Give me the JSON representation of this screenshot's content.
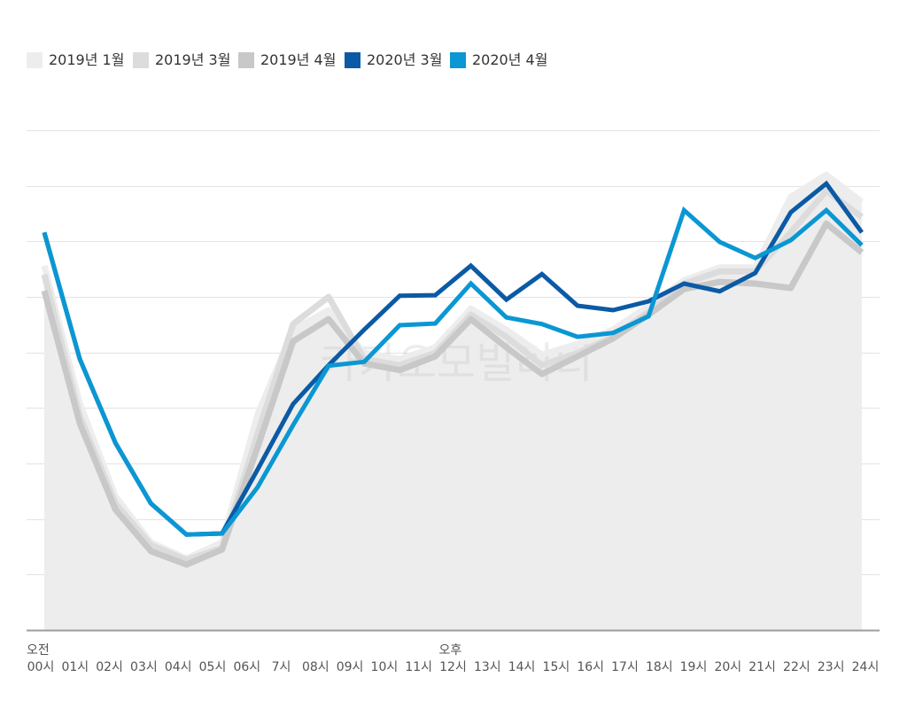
{
  "chart_data": {
    "type": "line",
    "title": "",
    "xlabel": "",
    "ylabel": "",
    "x": [
      0,
      1,
      2,
      3,
      4,
      5,
      6,
      7,
      8,
      9,
      10,
      11,
      12,
      13,
      14,
      15,
      16,
      17,
      18,
      19,
      20,
      21,
      22,
      23
    ],
    "x_tick_labels": [
      "00시",
      "01시",
      "02시",
      "03시",
      "04시",
      "05시",
      "06시",
      "7시",
      "08시",
      "09시",
      "10시",
      "11시",
      "12시",
      "13시",
      "14시",
      "15시",
      "16시",
      "17시",
      "18시",
      "19시",
      "20시",
      "21시",
      "22시",
      "23시",
      "24시"
    ],
    "period_labels": [
      {
        "text": "오전",
        "tick_index": 0
      },
      {
        "text": "오후",
        "tick_index": 12
      }
    ],
    "ylim": [
      0,
      90
    ],
    "y_grid_step": 10,
    "grid": true,
    "legend_position": "top-left",
    "series": [
      {
        "name": "2019년 1월",
        "color": "#ededed",
        "area": true,
        "values": [
          65.6,
          40.8,
          24.1,
          15.8,
          12.9,
          15.8,
          38.8,
          54.1,
          57.6,
          49.9,
          48.8,
          50.9,
          57.9,
          54.1,
          49.6,
          51.5,
          54.1,
          58.4,
          63.0,
          65.3,
          65.3,
          78.0,
          82.0,
          77.1
        ]
      },
      {
        "name": "2019년 3월",
        "color": "#dcdcdc",
        "area": false,
        "values": [
          64.0,
          38.5,
          22.8,
          15.3,
          12.6,
          14.8,
          35.3,
          55.1,
          60.0,
          48.8,
          47.7,
          49.9,
          56.8,
          52.8,
          47.7,
          49.9,
          52.8,
          57.3,
          62.4,
          64.6,
          64.6,
          71.6,
          79.1,
          74.4
        ]
      },
      {
        "name": "2019년 4월",
        "color": "#c8c8c8",
        "area": false,
        "values": [
          61.1,
          37.2,
          21.7,
          14.2,
          11.8,
          14.5,
          32.9,
          52.0,
          56.0,
          48.0,
          46.8,
          49.3,
          56.0,
          50.9,
          46.1,
          49.3,
          52.5,
          56.8,
          61.4,
          62.7,
          62.4,
          61.6,
          73.2,
          68.0
        ]
      },
      {
        "name": "2020년 3월",
        "color": "#0b5aa5",
        "area": false,
        "values": [
          71.6,
          48.8,
          33.7,
          22.8,
          17.2,
          17.4,
          28.9,
          40.7,
          47.7,
          54.1,
          60.2,
          60.3,
          65.6,
          59.5,
          64.1,
          58.4,
          57.6,
          59.2,
          62.4,
          61.0,
          64.3,
          75.2,
          80.4,
          71.6
        ]
      },
      {
        "name": "2020년 4월",
        "color": "#0a97d3",
        "area": false,
        "values": [
          71.6,
          48.8,
          33.7,
          22.8,
          17.2,
          17.4,
          25.7,
          36.9,
          47.6,
          48.3,
          54.9,
          55.2,
          62.4,
          56.3,
          55.1,
          52.8,
          53.5,
          56.5,
          75.6,
          69.9,
          67.0,
          70.2,
          75.6,
          69.3
        ]
      }
    ],
    "watermark": "카카오모빌리티"
  }
}
